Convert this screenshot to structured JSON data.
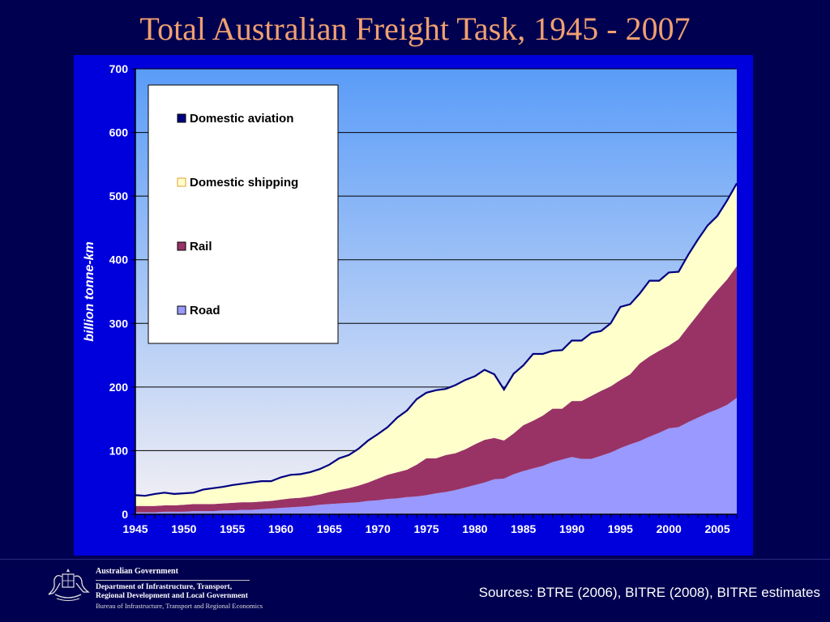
{
  "slide": {
    "title": "Total Australian Freight Task, 1945 - 2007",
    "sources": "Sources: BTRE (2006), BITRE (2008), BITRE estimates"
  },
  "footer": {
    "government": "Australian Government",
    "department_line1": "Department of Infrastructure, Transport,",
    "department_line2": "Regional Development and Local Government",
    "bureau": "Bureau of Infrastructure, Transport and Regional Economics"
  },
  "colors": {
    "road": "#9999ff",
    "rail": "#993366",
    "shipping": "#ffffcc",
    "aviation": "#000080",
    "plot_gradient_top": "#5a9cf8",
    "plot_gradient_bottom": "#f4f0f4",
    "frame": "#0000dd"
  },
  "chart_data": {
    "type": "area",
    "stacked": true,
    "ylabel": "billion tonne-km",
    "xlabel": "",
    "ylim": [
      0,
      700
    ],
    "xlim": [
      1945,
      2007
    ],
    "yticks": [
      0,
      100,
      200,
      300,
      400,
      500,
      600,
      700
    ],
    "xticks": [
      1945,
      1950,
      1955,
      1960,
      1965,
      1970,
      1975,
      1980,
      1985,
      1990,
      1995,
      2000,
      2005
    ],
    "grid": true,
    "legend_position": "top-left",
    "x": [
      1945,
      1946,
      1947,
      1948,
      1949,
      1950,
      1951,
      1952,
      1953,
      1954,
      1955,
      1956,
      1957,
      1958,
      1959,
      1960,
      1961,
      1962,
      1963,
      1964,
      1965,
      1966,
      1967,
      1968,
      1969,
      1970,
      1971,
      1972,
      1973,
      1974,
      1975,
      1976,
      1977,
      1978,
      1979,
      1980,
      1981,
      1982,
      1983,
      1984,
      1985,
      1986,
      1987,
      1988,
      1989,
      1990,
      1991,
      1992,
      1993,
      1994,
      1995,
      1996,
      1997,
      1998,
      1999,
      2000,
      2001,
      2002,
      2003,
      2004,
      2005,
      2006,
      2007
    ],
    "series": [
      {
        "name": "Road",
        "values": [
          3,
          3,
          3,
          4,
          4,
          4,
          5,
          5,
          5,
          6,
          6,
          7,
          7,
          8,
          9,
          10,
          11,
          12,
          13,
          15,
          16,
          17,
          18,
          19,
          21,
          22,
          24,
          25,
          27,
          28,
          30,
          33,
          35,
          38,
          42,
          46,
          50,
          55,
          56,
          63,
          68,
          72,
          76,
          82,
          86,
          90,
          87,
          87,
          92,
          97,
          104,
          110,
          115,
          122,
          128,
          135,
          137,
          145,
          152,
          159,
          165,
          172,
          183
        ]
      },
      {
        "name": "Rail",
        "values": [
          10,
          10,
          10,
          10,
          10,
          11,
          11,
          11,
          11,
          11,
          12,
          12,
          12,
          12,
          12,
          13,
          14,
          14,
          15,
          16,
          19,
          21,
          23,
          26,
          29,
          34,
          38,
          41,
          43,
          50,
          58,
          55,
          58,
          58,
          60,
          64,
          67,
          65,
          60,
          64,
          72,
          75,
          79,
          84,
          80,
          88,
          91,
          99,
          102,
          104,
          107,
          110,
          122,
          126,
          129,
          130,
          138,
          150,
          162,
          175,
          187,
          197,
          207
        ]
      },
      {
        "name": "Domestic shipping",
        "values": [
          17,
          16,
          19,
          20,
          18,
          18,
          18,
          23,
          25,
          26,
          28,
          29,
          31,
          32,
          31,
          35,
          37,
          37,
          38,
          40,
          43,
          50,
          52,
          58,
          66,
          70,
          75,
          86,
          93,
          103,
          103,
          107,
          104,
          107,
          109,
          107,
          110,
          100,
          80,
          94,
          94,
          105,
          97,
          91,
          92,
          95,
          95,
          99,
          94,
          99,
          115,
          110,
          110,
          119,
          110,
          115,
          106,
          113,
          118,
          120,
          117,
          124,
          130
        ]
      },
      {
        "name": "Domestic aviation",
        "values": [
          0,
          0,
          0,
          0,
          0,
          0,
          0,
          0,
          0,
          0,
          0,
          0,
          0,
          0,
          0,
          0,
          0,
          0,
          0,
          0,
          0,
          0,
          0,
          0,
          0,
          0,
          0,
          0,
          0,
          0,
          0,
          0,
          0,
          0,
          0,
          0,
          0,
          0,
          0,
          0,
          0,
          0,
          0,
          0,
          0,
          0,
          0,
          0,
          0,
          0,
          0,
          0,
          0,
          0,
          0,
          0,
          0,
          0,
          0,
          0,
          0,
          0,
          0
        ]
      }
    ]
  }
}
